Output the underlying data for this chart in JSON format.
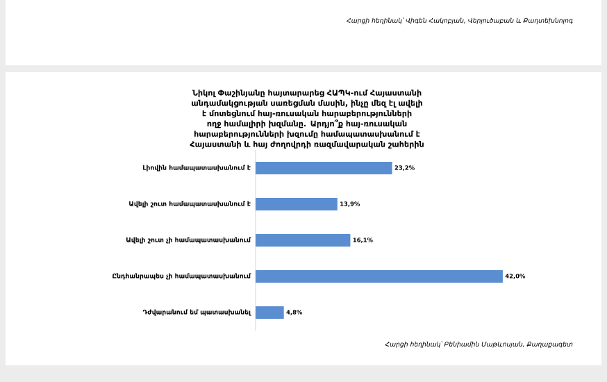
{
  "chart_data": {
    "type": "bar",
    "orientation": "horizontal",
    "title": "Նիկոլ Փաշինյանը հայտարարեց ՀԱՊԿ-ում Հայաստանի անդամակցության սառեցման մասին, ինչը մեզ էլ ավելի է մոտեցնում հայ-ռուսական հարաբերությունների ողջ համալիրի խզմանը. Արդյո՞ք հայ-ռուսական հարաբերությունների խզումը համապատասխանում է Հայաստանի և հայ ժողովրդի ռազմավարական շահերին",
    "categories": [
      "Լիովին համապատասխանում է",
      "Ավելի շուտ համապատասխանում է",
      "Ավելի շուտ չի համապատասխանում",
      "Ընդհանրապես չի համապատասխանում",
      "Դժվարանում եմ պատասխանել"
    ],
    "values": [
      23.2,
      13.9,
      16.1,
      42.0,
      4.8
    ],
    "value_labels": [
      "23,2%",
      "13,9%",
      "16,1%",
      "42,0%",
      "4,8%"
    ],
    "color": "#5a8ed0",
    "annotations": [
      "Հարցի հեղինակ՝ Վիգեն Հակոբյան, Վերլուծաբան և Քաղտեխնոլոգ",
      "Հարցի հեղինակ՝ Բենիամին Մաթևոսյան, Քաղաքագետ"
    ]
  }
}
